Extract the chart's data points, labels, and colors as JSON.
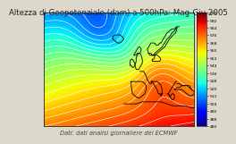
{
  "title": "Altezza di Geopotenziale (dam) a 500hPa: Mag-Giu 2005",
  "subtitle": "Dati: dati analisi giornaliere del ECMWF",
  "title_color": "#222222",
  "title_fontsize": 6.2,
  "subtitle_fontsize": 4.8,
  "colorbar_min": 480,
  "colorbar_max": 600,
  "colorbar_step": 4,
  "colorbar_label_step": 8,
  "map_lon_min": -80,
  "map_lon_max": 42,
  "map_lat_min": 22,
  "map_lat_max": 78,
  "fig_bg": "#ddd8cc"
}
